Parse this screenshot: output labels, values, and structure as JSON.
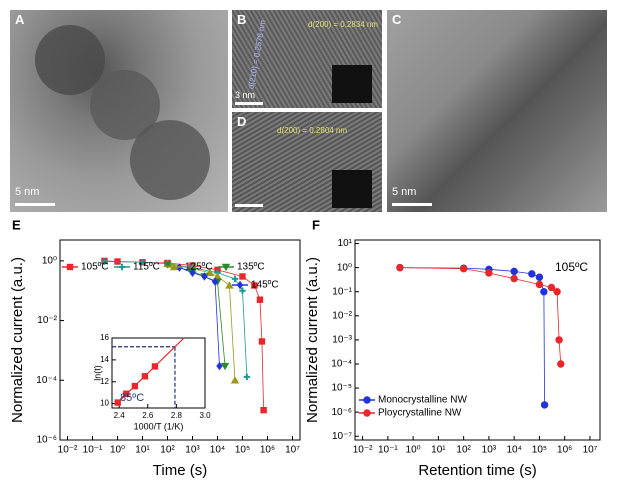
{
  "panels": [
    {
      "label": "A",
      "scale_bar": "5 nm"
    },
    {
      "label": "B",
      "scale_bar": "3 nm",
      "annotations": [
        "d(200) = 0.2834 nm",
        "d(210) = 0.2578 nm"
      ]
    },
    {
      "label": "C",
      "scale_bar": "5 nm"
    },
    {
      "label": "D",
      "annotations": [
        "d(200) = 0.2804 nm"
      ]
    }
  ],
  "chart_data": [
    {
      "type": "scatter",
      "label": "E",
      "xscale": "log",
      "yscale": "log",
      "xlabel": "Time (s)",
      "ylabel": "Normalized current (a.u.)",
      "xlim": [
        0.005,
        20000000
      ],
      "ylim": [
        1e-06,
        5
      ],
      "xticks": [
        {
          "value": 0.01,
          "label": "10⁻²"
        },
        {
          "value": 0.1,
          "label": "10⁻¹"
        },
        {
          "value": 1,
          "label": "10⁰"
        },
        {
          "value": 10,
          "label": "10¹"
        },
        {
          "value": 100,
          "label": "10²"
        },
        {
          "value": 1000,
          "label": "10³"
        },
        {
          "value": 10000,
          "label": "10⁴"
        },
        {
          "value": 100000,
          "label": "10⁵"
        },
        {
          "value": 1000000,
          "label": "10⁶"
        },
        {
          "value": 10000000,
          "label": "10⁷"
        }
      ],
      "yticks": [
        {
          "value": 1,
          "label": "10⁰"
        },
        {
          "value": 0.01,
          "label": "10⁻²"
        },
        {
          "value": 0.0001,
          "label": "10⁻⁴"
        },
        {
          "value": 1e-06,
          "label": "10⁻⁶"
        }
      ],
      "legend": "upper center",
      "series": [
        {
          "name": "105ºC",
          "color": "#e8262b",
          "marker": "square",
          "x": [
            0.3,
            1,
            10,
            100,
            1000,
            10000,
            100000,
            300000,
            500000,
            600000,
            700000
          ],
          "values": [
            1,
            0.95,
            0.9,
            0.85,
            0.7,
            0.5,
            0.3,
            0.15,
            0.05,
            0.002,
            1e-05
          ]
        },
        {
          "name": "115ºC",
          "color": "#1a9a9a",
          "marker": "cross",
          "x": [
            0.3,
            10,
            100,
            1000,
            10000,
            50000,
            100000,
            150000
          ],
          "values": [
            0.95,
            0.9,
            0.8,
            0.6,
            0.4,
            0.25,
            0.1,
            0.00013
          ]
        },
        {
          "name": "125ºC",
          "color": "#9a9a1a",
          "marker": "triangle",
          "x": [
            100,
            1000,
            5000,
            10000,
            30000,
            50000
          ],
          "values": [
            0.8,
            0.55,
            0.4,
            0.3,
            0.15,
            0.0001
          ]
        },
        {
          "name": "135ºC",
          "color": "#2a8a2a",
          "marker": "triangle-down",
          "x": [
            100,
            1000,
            3000,
            10000,
            20000
          ],
          "values": [
            0.75,
            0.45,
            0.3,
            0.2,
            0.0003
          ]
        },
        {
          "name": "145ºC",
          "color": "#2233dd",
          "marker": "diamond",
          "x": [
            300,
            1000,
            3000,
            8000,
            12000
          ],
          "values": [
            0.6,
            0.4,
            0.3,
            0.2,
            0.0003
          ]
        }
      ]
    },
    {
      "type": "scatter",
      "xlabel": "1000/T (1/K)",
      "ylabel": "ln(t)",
      "xlim": [
        2.35,
        3
      ],
      "ylim": [
        9.6,
        16
      ],
      "xticks": [
        2.4,
        2.6,
        2.8,
        {
          "value": 3,
          "label": "3.0"
        }
      ],
      "yticks": [
        10,
        12,
        14,
        16
      ],
      "annotation": "85ºC",
      "series": [
        {
          "color": "#e8262b",
          "x": [
            2.39,
            2.45,
            2.51,
            2.58,
            2.65
          ],
          "values": [
            10.1,
            10.9,
            11.6,
            12.5,
            13.4
          ]
        }
      ],
      "extrapolation": {
        "x": 2.79,
        "y": 15.2
      }
    },
    {
      "type": "scatter",
      "label": "F",
      "xscale": "log",
      "yscale": "log",
      "xlabel": "Retention time (s)",
      "ylabel": "Normalized current (a.u.)",
      "xlim": [
        0.005,
        25000000
      ],
      "ylim": [
        7e-08,
        14
      ],
      "xticks": [
        {
          "value": 0.01,
          "label": "10⁻²"
        },
        {
          "value": 0.1,
          "label": "10⁻¹"
        },
        {
          "value": 1,
          "label": "10⁰"
        },
        {
          "value": 10,
          "label": "10¹"
        },
        {
          "value": 100,
          "label": "10²"
        },
        {
          "value": 1000,
          "label": "10³"
        },
        {
          "value": 10000,
          "label": "10⁴"
        },
        {
          "value": 100000,
          "label": "10⁵"
        },
        {
          "value": 1000000,
          "label": "10⁶"
        },
        {
          "value": 10000000,
          "label": "10⁷"
        }
      ],
      "yticks": [
        {
          "value": 10,
          "label": "10¹"
        },
        {
          "value": 1,
          "label": "10⁰"
        },
        {
          "value": 0.1,
          "label": "10⁻¹"
        },
        {
          "value": 0.01,
          "label": "10⁻²"
        },
        {
          "value": 0.001,
          "label": "10⁻³"
        },
        {
          "value": 0.0001,
          "label": "10⁻⁴"
        },
        {
          "value": 1e-05,
          "label": "10⁻⁵"
        },
        {
          "value": 1e-06,
          "label": "10⁻⁶"
        },
        {
          "value": 1e-07,
          "label": "10⁻⁷"
        }
      ],
      "legend": "lower left",
      "annotation": "105ºC",
      "series": [
        {
          "name": "Monocrystalline NW",
          "color": "#2233dd",
          "marker": "circle",
          "x": [
            0.3,
            100,
            1000,
            10000,
            50000,
            100000,
            150000,
            160000
          ],
          "values": [
            1,
            0.95,
            0.85,
            0.7,
            0.55,
            0.4,
            0.1,
            2e-06
          ]
        },
        {
          "name": "Ploycrystalline NW",
          "color": "#e8262b",
          "marker": "circle",
          "x": [
            0.3,
            100,
            1000,
            10000,
            100000,
            300000,
            500000,
            600000,
            700000
          ],
          "values": [
            1,
            0.9,
            0.6,
            0.35,
            0.2,
            0.15,
            0.1,
            0.001,
            0.0001
          ]
        }
      ]
    }
  ]
}
